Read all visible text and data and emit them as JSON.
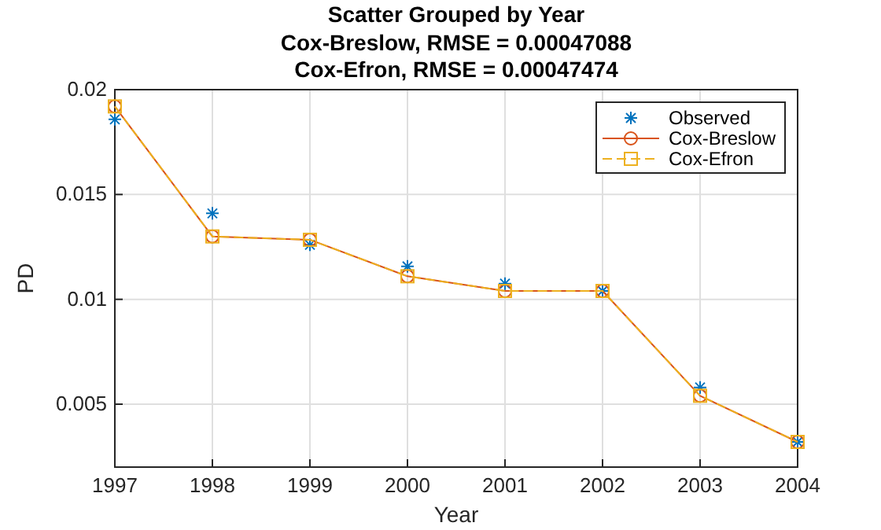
{
  "chart_data": {
    "type": "line",
    "title": "Scatter Grouped by Year",
    "subtitle": "Cox-Breslow, RMSE = 0.00047088\nCox-Efron, RMSE = 0.00047474",
    "xlabel": "Year",
    "ylabel": "PD",
    "x": [
      1997,
      1998,
      1999,
      2000,
      2001,
      2002,
      2003,
      2004
    ],
    "series": [
      {
        "name": "Observed",
        "type": "scatter",
        "color": "#0072bd",
        "marker": "cross",
        "values": [
          0.01858,
          0.0141,
          0.0126,
          0.01157,
          0.01075,
          0.0104,
          0.0058,
          0.0032
        ]
      },
      {
        "name": "Cox-Breslow",
        "type": "line",
        "color": "#d95319",
        "marker": "circle",
        "line_style": "solid",
        "values": [
          0.0192,
          0.013,
          0.01284,
          0.0111,
          0.0104,
          0.0104,
          0.0054,
          0.0032
        ]
      },
      {
        "name": "Cox-Efron",
        "type": "line",
        "color": "#edb120",
        "marker": "square",
        "line_style": "dashed",
        "values": [
          0.0192,
          0.013,
          0.01284,
          0.0111,
          0.0104,
          0.0104,
          0.0054,
          0.0032
        ]
      }
    ],
    "xlim": [
      1997,
      2004
    ],
    "xticks": [
      1997,
      1998,
      1999,
      2000,
      2001,
      2002,
      2003,
      2004
    ],
    "ylim": [
      0.002,
      0.02
    ],
    "yticks": [
      {
        "value": 0.005,
        "label": "0.005"
      },
      {
        "value": 0.01,
        "label": "0.01"
      },
      {
        "value": 0.015,
        "label": "0.015"
      },
      {
        "value": 0.02,
        "label": "0.02"
      }
    ],
    "grid": true,
    "legend": "top right"
  }
}
